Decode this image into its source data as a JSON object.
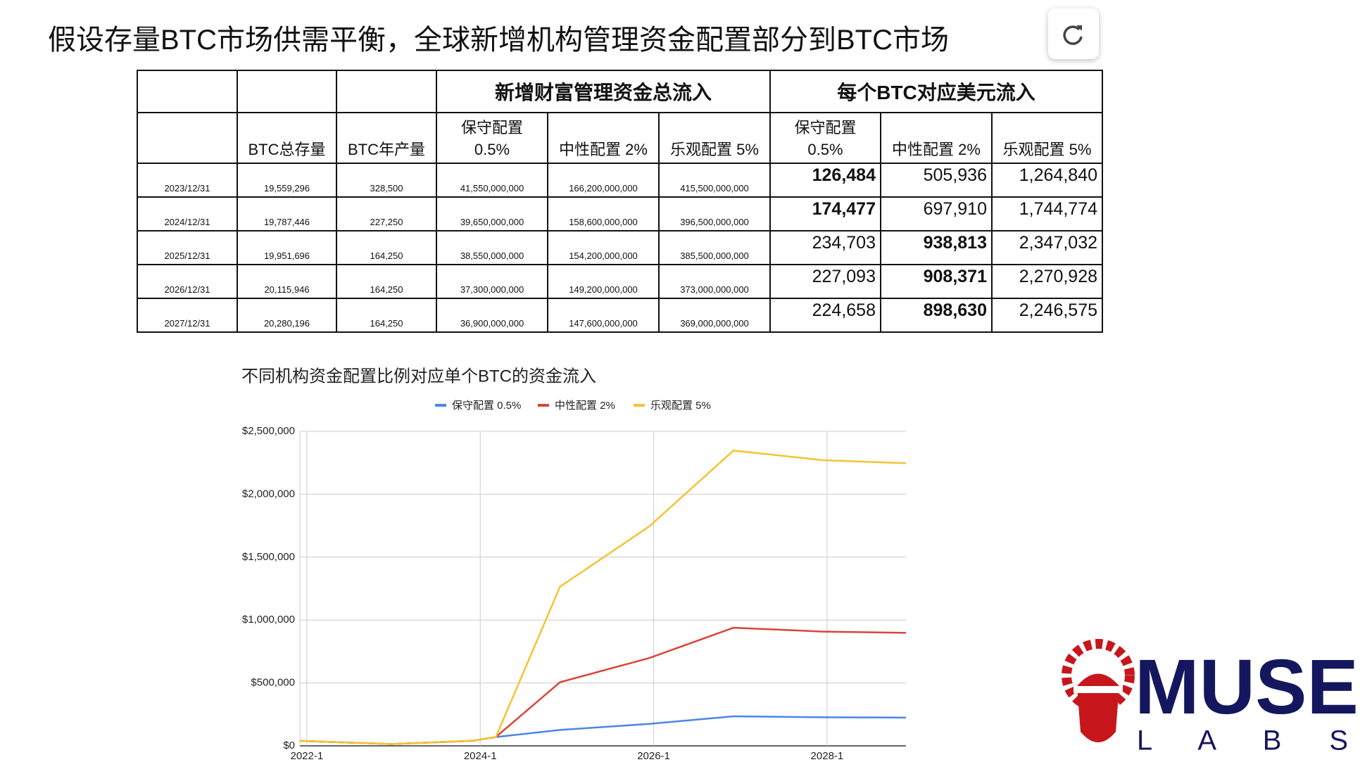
{
  "title": "假设存量BTC市场供需平衡，全球新增机构管理资金配置部分到BTC市场",
  "table": {
    "groups": [
      "新增财富管理资金总流入",
      "每个BTC对应美元流入"
    ],
    "columns": [
      "BTC总存量",
      "BTC年产量",
      "保守配置\n0.5%",
      "中性配置 2%",
      "乐观配置 5%",
      "保守配置\n0.5%",
      "中性配置 2%",
      "乐观配置 5%"
    ],
    "rows": [
      [
        "2023/12/31",
        "19,559,296",
        "328,500",
        "41,550,000,000",
        "166,200,000,000",
        "415,500,000,000",
        "126,484",
        "505,936",
        "1,264,840"
      ],
      [
        "2024/12/31",
        "19,787,446",
        "227,250",
        "39,650,000,000",
        "158,600,000,000",
        "396,500,000,000",
        "174,477",
        "697,910",
        "1,744,774"
      ],
      [
        "2025/12/31",
        "19,951,696",
        "164,250",
        "38,550,000,000",
        "154,200,000,000",
        "385,500,000,000",
        "234,703",
        "938,813",
        "2,347,032"
      ],
      [
        "2026/12/31",
        "20,115,946",
        "164,250",
        "37,300,000,000",
        "149,200,000,000",
        "373,000,000,000",
        "227,093",
        "908,371",
        "2,270,928"
      ],
      [
        "2027/12/31",
        "20,280,196",
        "164,250",
        "36,900,000,000",
        "147,600,000,000",
        "369,000,000,000",
        "224,658",
        "898,630",
        "2,246,575"
      ]
    ]
  },
  "chart_data": {
    "type": "line",
    "title": "不同机构资金配置比例对应单个BTC的资金流入",
    "x": [
      2021.92,
      2022.97,
      2023.91,
      2024.18,
      2024.92,
      2025.95,
      2026.92,
      2027.95,
      2028.91
    ],
    "xlim": [
      2021.92,
      2028.91
    ],
    "xticks": [
      {
        "value": 2022,
        "label": "2022-1"
      },
      {
        "value": 2024,
        "label": "2024-1"
      },
      {
        "value": 2026,
        "label": "2026-1"
      },
      {
        "value": 2028,
        "label": "2028-1"
      }
    ],
    "ylim": [
      0,
      2500000
    ],
    "yticks": [
      {
        "value": 0,
        "label": "$0"
      },
      {
        "value": 500000,
        "label": "$500,000"
      },
      {
        "value": 1000000,
        "label": "$1,000,000"
      },
      {
        "value": 1500000,
        "label": "$1,500,000"
      },
      {
        "value": 2000000,
        "label": "$2,000,000"
      },
      {
        "value": 2500000,
        "label": "$2,500,000"
      }
    ],
    "grid": true,
    "legend": "top",
    "series": [
      {
        "name": "保守配置 0.5%",
        "color": "#4a86e8",
        "values": [
          40000,
          14000,
          40000,
          70000,
          126484,
          174477,
          234703,
          227093,
          224658
        ]
      },
      {
        "name": "中性配置 2%",
        "color": "#db4437",
        "values": [
          40000,
          14000,
          40000,
          70000,
          505936,
          697910,
          938813,
          908371,
          898630
        ]
      },
      {
        "name": "乐观配置 5%",
        "color": "#f4c430",
        "values": [
          40000,
          14000,
          40000,
          70000,
          1264840,
          1744774,
          2347032,
          2270928,
          2246575
        ]
      }
    ]
  },
  "logo": {
    "text": "MUSE",
    "subtext": "L A B S"
  }
}
